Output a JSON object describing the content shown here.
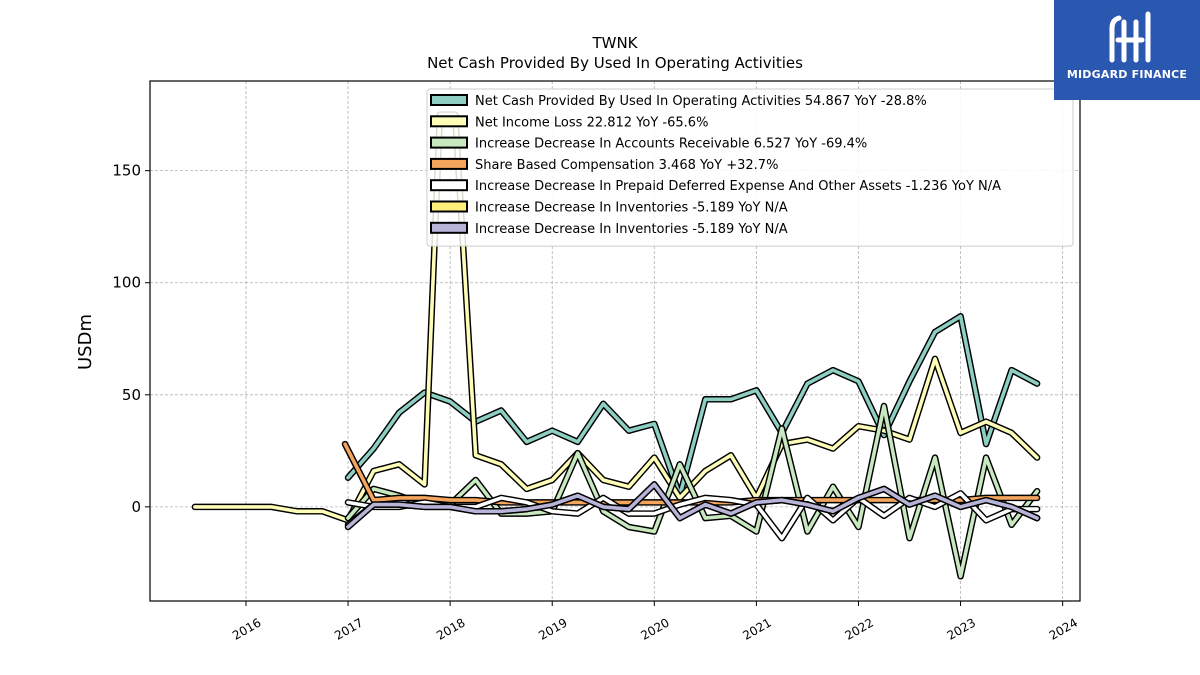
{
  "logo": {
    "text": "MIDGARD FINANCE"
  },
  "chart_data": {
    "type": "line",
    "title": "TWNK",
    "subtitle": "Net Cash Provided By Used In Operating Activities",
    "ylabel": "USDm",
    "xlabel": "",
    "xlim": [
      2015.06,
      2024.17
    ],
    "ylim": [
      -42,
      190
    ],
    "yticks": [
      0,
      50,
      100,
      150
    ],
    "xticks": [
      "2016",
      "2017",
      "2018",
      "2019",
      "2020",
      "2021",
      "2022",
      "2023",
      "2024"
    ],
    "grid": true,
    "legend_position": "top-right",
    "series": [
      {
        "name": "Net Cash Provided By Used In Operating Activities  54.867 YoY -28.8%",
        "color": "#8ecfc3",
        "points": [
          [
            2017.0,
            13
          ],
          [
            2017.25,
            26
          ],
          [
            2017.5,
            42
          ],
          [
            2017.75,
            51
          ],
          [
            2018.0,
            47
          ],
          [
            2018.25,
            38
          ],
          [
            2018.5,
            43
          ],
          [
            2018.75,
            29
          ],
          [
            2019.0,
            34
          ],
          [
            2019.25,
            29
          ],
          [
            2019.5,
            46
          ],
          [
            2019.75,
            34
          ],
          [
            2020.0,
            37
          ],
          [
            2020.25,
            5
          ],
          [
            2020.5,
            48
          ],
          [
            2020.75,
            48
          ],
          [
            2021.0,
            52
          ],
          [
            2021.25,
            33
          ],
          [
            2021.5,
            55
          ],
          [
            2021.75,
            61
          ],
          [
            2022.0,
            56
          ],
          [
            2022.25,
            32
          ],
          [
            2022.5,
            56
          ],
          [
            2022.75,
            78
          ],
          [
            2023.0,
            85
          ],
          [
            2023.25,
            28
          ],
          [
            2023.5,
            61
          ],
          [
            2023.75,
            55
          ]
        ]
      },
      {
        "name": "Net Income Loss  22.812 YoY -65.6%",
        "color": "#fdfdb8",
        "points": [
          [
            2015.5,
            0
          ],
          [
            2015.75,
            0
          ],
          [
            2016.0,
            0
          ],
          [
            2016.25,
            0
          ],
          [
            2016.5,
            -2
          ],
          [
            2016.75,
            -2
          ],
          [
            2017.0,
            -6
          ],
          [
            2017.25,
            16
          ],
          [
            2017.5,
            19
          ],
          [
            2017.75,
            10
          ],
          [
            2017.9,
            175
          ],
          [
            2018.05,
            175
          ],
          [
            2018.25,
            23
          ],
          [
            2018.5,
            19
          ],
          [
            2018.75,
            8
          ],
          [
            2019.0,
            12
          ],
          [
            2019.25,
            24
          ],
          [
            2019.5,
            12
          ],
          [
            2019.75,
            9
          ],
          [
            2020.0,
            22
          ],
          [
            2020.25,
            4
          ],
          [
            2020.5,
            16
          ],
          [
            2020.75,
            23
          ],
          [
            2021.0,
            4
          ],
          [
            2021.25,
            28
          ],
          [
            2021.5,
            30
          ],
          [
            2021.75,
            26
          ],
          [
            2022.0,
            36
          ],
          [
            2022.25,
            34
          ],
          [
            2022.5,
            30
          ],
          [
            2022.75,
            66
          ],
          [
            2023.0,
            33
          ],
          [
            2023.25,
            38
          ],
          [
            2023.5,
            33
          ],
          [
            2023.75,
            22
          ]
        ]
      },
      {
        "name": "Increase Decrease In Accounts Receivable  6.527 YoY -69.4%",
        "color": "#c8e8c0",
        "points": [
          [
            2017.0,
            -5
          ],
          [
            2017.25,
            8
          ],
          [
            2017.5,
            5
          ],
          [
            2017.75,
            1
          ],
          [
            2018.0,
            1
          ],
          [
            2018.25,
            12
          ],
          [
            2018.5,
            -3
          ],
          [
            2018.75,
            -3
          ],
          [
            2019.0,
            -2
          ],
          [
            2019.25,
            24
          ],
          [
            2019.5,
            -2
          ],
          [
            2019.75,
            -9
          ],
          [
            2020.0,
            -11
          ],
          [
            2020.25,
            19
          ],
          [
            2020.5,
            -5
          ],
          [
            2020.75,
            -4
          ],
          [
            2021.0,
            -11
          ],
          [
            2021.25,
            35
          ],
          [
            2021.5,
            -11
          ],
          [
            2021.75,
            9
          ],
          [
            2022.0,
            -9
          ],
          [
            2022.25,
            45
          ],
          [
            2022.5,
            -14
          ],
          [
            2022.75,
            22
          ],
          [
            2023.0,
            -31
          ],
          [
            2023.25,
            22
          ],
          [
            2023.5,
            -8
          ],
          [
            2023.75,
            7
          ]
        ]
      },
      {
        "name": "Share Based Compensation  3.468 YoY +32.7%",
        "color": "#f5a55c",
        "points": [
          [
            2016.97,
            28
          ],
          [
            2017.25,
            3
          ],
          [
            2017.5,
            4
          ],
          [
            2017.75,
            4
          ],
          [
            2018.0,
            3
          ],
          [
            2018.25,
            3
          ],
          [
            2018.5,
            2
          ],
          [
            2018.75,
            2
          ],
          [
            2019.0,
            2
          ],
          [
            2019.25,
            2
          ],
          [
            2019.5,
            2
          ],
          [
            2019.75,
            2
          ],
          [
            2020.0,
            2
          ],
          [
            2020.25,
            2
          ],
          [
            2020.5,
            2
          ],
          [
            2020.75,
            2
          ],
          [
            2021.0,
            3
          ],
          [
            2021.25,
            3
          ],
          [
            2021.5,
            3
          ],
          [
            2021.75,
            3
          ],
          [
            2022.0,
            3
          ],
          [
            2022.25,
            3
          ],
          [
            2022.5,
            3
          ],
          [
            2022.75,
            3
          ],
          [
            2023.0,
            3
          ],
          [
            2023.25,
            4
          ],
          [
            2023.5,
            4
          ],
          [
            2023.75,
            4
          ]
        ]
      },
      {
        "name": "Increase Decrease In Prepaid Deferred Expense And Other Assets  -1.236 YoY N/A",
        "color": "#ffffff",
        "points": [
          [
            2017.0,
            2
          ],
          [
            2017.25,
            0
          ],
          [
            2017.5,
            0
          ],
          [
            2017.75,
            2
          ],
          [
            2018.0,
            0
          ],
          [
            2018.25,
            0
          ],
          [
            2018.5,
            4
          ],
          [
            2018.75,
            2
          ],
          [
            2019.0,
            -2
          ],
          [
            2019.25,
            -3
          ],
          [
            2019.5,
            4
          ],
          [
            2019.75,
            -3
          ],
          [
            2020.0,
            -3
          ],
          [
            2020.25,
            1
          ],
          [
            2020.5,
            4
          ],
          [
            2020.75,
            3
          ],
          [
            2021.0,
            1
          ],
          [
            2021.25,
            -14
          ],
          [
            2021.5,
            4
          ],
          [
            2021.75,
            -6
          ],
          [
            2022.0,
            4
          ],
          [
            2022.25,
            -4
          ],
          [
            2022.5,
            4
          ],
          [
            2022.75,
            0
          ],
          [
            2023.0,
            6
          ],
          [
            2023.25,
            -6
          ],
          [
            2023.5,
            -1
          ],
          [
            2023.75,
            -1
          ]
        ]
      },
      {
        "name": "Increase Decrease In Inventories  -5.189 YoY N/A",
        "color": "#fff07a",
        "points": [
          [
            2017.0,
            -8
          ],
          [
            2017.25,
            1
          ],
          [
            2017.5,
            1
          ],
          [
            2017.75,
            0
          ],
          [
            2018.0,
            0
          ],
          [
            2018.25,
            -2
          ],
          [
            2018.5,
            -2
          ],
          [
            2018.75,
            -1
          ],
          [
            2019.0,
            1
          ],
          [
            2019.25,
            5
          ],
          [
            2019.5,
            0
          ],
          [
            2019.75,
            -1
          ],
          [
            2020.0,
            10
          ],
          [
            2020.25,
            -5
          ],
          [
            2020.5,
            1
          ],
          [
            2020.75,
            -3
          ],
          [
            2021.0,
            2
          ],
          [
            2021.25,
            3
          ],
          [
            2021.5,
            1
          ],
          [
            2021.75,
            -2
          ],
          [
            2022.0,
            4
          ],
          [
            2022.25,
            8
          ],
          [
            2022.5,
            1
          ],
          [
            2022.75,
            5
          ],
          [
            2023.0,
            0
          ],
          [
            2023.25,
            3
          ],
          [
            2023.5,
            0
          ],
          [
            2023.75,
            -5
          ]
        ]
      },
      {
        "name": "Increase Decrease In Inventories  -5.189 YoY N/A",
        "color": "#b7b4d8",
        "points": [
          [
            2017.0,
            -9
          ],
          [
            2017.25,
            1
          ],
          [
            2017.5,
            1
          ],
          [
            2017.75,
            0
          ],
          [
            2018.0,
            0
          ],
          [
            2018.25,
            -2
          ],
          [
            2018.5,
            -2
          ],
          [
            2018.75,
            -1
          ],
          [
            2019.0,
            1
          ],
          [
            2019.25,
            5
          ],
          [
            2019.5,
            0
          ],
          [
            2019.75,
            -1
          ],
          [
            2020.0,
            10
          ],
          [
            2020.25,
            -5
          ],
          [
            2020.5,
            1
          ],
          [
            2020.75,
            -3
          ],
          [
            2021.0,
            2
          ],
          [
            2021.25,
            3
          ],
          [
            2021.5,
            1
          ],
          [
            2021.75,
            -2
          ],
          [
            2022.0,
            4
          ],
          [
            2022.25,
            8
          ],
          [
            2022.5,
            1
          ],
          [
            2022.75,
            5
          ],
          [
            2023.0,
            0
          ],
          [
            2023.25,
            3
          ],
          [
            2023.5,
            0
          ],
          [
            2023.75,
            -5
          ]
        ]
      }
    ]
  }
}
